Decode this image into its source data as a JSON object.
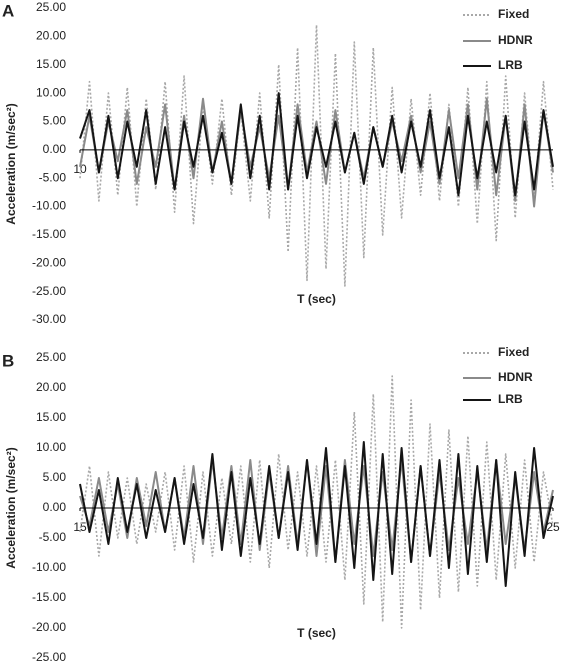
{
  "chart_data": [
    {
      "type": "line",
      "label": "A",
      "xlabel": "T (sec)",
      "ylabel": "Acceleration (m/sec²)",
      "legend": "upper right",
      "xlim": [
        10,
        20
      ],
      "xticks": [
        10
      ],
      "ylim": [
        -30,
        25
      ],
      "yticks": [
        {
          "value": 25,
          "label": "25.00"
        },
        {
          "value": 20,
          "label": "20.00"
        },
        {
          "value": 15,
          "label": "15.00"
        },
        {
          "value": 10,
          "label": "10.00"
        },
        {
          "value": 5,
          "label": "5.00"
        },
        {
          "value": 0,
          "label": "0.00"
        },
        {
          "value": -5,
          "label": "-5.00"
        },
        {
          "value": -10,
          "label": "-10.00"
        },
        {
          "value": -15,
          "label": "-15.00"
        },
        {
          "value": -20,
          "label": "-20.00"
        },
        {
          "value": -25,
          "label": "-25.00"
        },
        {
          "value": -30,
          "label": "-30.00"
        }
      ],
      "x": [
        10,
        10.2,
        10.4,
        10.6,
        10.8,
        11,
        11.2,
        11.4,
        11.6,
        11.8,
        12,
        12.2,
        12.4,
        12.6,
        12.8,
        13,
        13.2,
        13.4,
        13.6,
        13.8,
        14,
        14.2,
        14.4,
        14.6,
        14.8,
        15,
        15.2,
        15.4,
        15.6,
        15.8,
        16,
        16.2,
        16.4,
        16.6,
        16.8,
        17,
        17.2,
        17.4,
        17.6,
        17.8,
        18,
        18.2,
        18.4,
        18.6,
        18.8,
        19,
        19.2,
        19.4,
        19.6,
        19.8,
        20
      ],
      "series": [
        {
          "name": "Fixed",
          "color": "#a8a8a8",
          "style": "dotted",
          "values": [
            -5,
            12,
            -9,
            10,
            -8,
            11,
            -10,
            9,
            -7,
            12,
            -11,
            13,
            -13,
            8,
            -6,
            9,
            -8,
            7,
            -9,
            10,
            -12,
            15,
            -18,
            18,
            -23,
            22,
            -21,
            17,
            -24,
            19,
            -19,
            18,
            -15,
            11,
            -12,
            9,
            -8,
            10,
            -9,
            8,
            -10,
            11,
            -13,
            12,
            -16,
            13,
            -12,
            10,
            -9,
            12,
            -7
          ]
        },
        {
          "name": "HDNR",
          "color": "#8a8a8a",
          "style": "solid",
          "values": [
            -3,
            6,
            -4,
            5,
            -2,
            7,
            -6,
            4,
            -3,
            8,
            -7,
            6,
            -5,
            9,
            -4,
            5,
            -6,
            7,
            -3,
            4,
            -5,
            6,
            -7,
            8,
            -4,
            5,
            -6,
            7,
            -4,
            3,
            -5,
            4,
            -3,
            5,
            -2,
            6,
            -4,
            5,
            -6,
            7,
            -5,
            8,
            -7,
            9,
            -8,
            6,
            -9,
            8,
            -10,
            7,
            -4
          ]
        },
        {
          "name": "LRB",
          "color": "#151515",
          "style": "solid",
          "values": [
            2,
            7,
            -4,
            6,
            -5,
            5,
            -3,
            7,
            -6,
            4,
            -7,
            5,
            -3,
            6,
            -4,
            3,
            -6,
            8,
            -5,
            6,
            -7,
            10,
            -7,
            6,
            -5,
            4,
            -3,
            5,
            -4,
            3,
            -6,
            4,
            -3,
            6,
            -4,
            5,
            -3,
            7,
            -5,
            4,
            -8,
            6,
            -5,
            5,
            -4,
            6,
            -8,
            5,
            -7,
            7,
            -3
          ]
        }
      ]
    },
    {
      "type": "line",
      "label": "B",
      "xlabel": "T (sec)",
      "ylabel": "Acceleration (m/sec²)",
      "legend": "upper right",
      "xlim": [
        15,
        25
      ],
      "xticks": [
        15,
        25
      ],
      "ylim": [
        -25,
        25
      ],
      "yticks": [
        {
          "value": 25,
          "label": "25.00"
        },
        {
          "value": 20,
          "label": "20.00"
        },
        {
          "value": 15,
          "label": "15.00"
        },
        {
          "value": 10,
          "label": "10.00"
        },
        {
          "value": 5,
          "label": "5.00"
        },
        {
          "value": 0,
          "label": "0.00"
        },
        {
          "value": -5,
          "label": "-5.00"
        },
        {
          "value": -10,
          "label": "-10.00"
        },
        {
          "value": -15,
          "label": "-15.00"
        },
        {
          "value": -20,
          "label": "-20.00"
        },
        {
          "value": -25,
          "label": "-25.00"
        }
      ],
      "x": [
        15,
        15.2,
        15.4,
        15.6,
        15.8,
        16,
        16.2,
        16.4,
        16.6,
        16.8,
        17,
        17.2,
        17.4,
        17.6,
        17.8,
        18,
        18.2,
        18.4,
        18.6,
        18.8,
        19,
        19.2,
        19.4,
        19.6,
        19.8,
        20,
        20.2,
        20.4,
        20.6,
        20.8,
        21,
        21.2,
        21.4,
        21.6,
        21.8,
        22,
        22.2,
        22.4,
        22.6,
        22.8,
        23,
        23.2,
        23.4,
        23.6,
        23.8,
        24,
        24.2,
        24.4,
        24.6,
        24.8,
        25
      ],
      "series": [
        {
          "name": "Fixed",
          "color": "#a8a8a8",
          "style": "dotted",
          "values": [
            -4,
            7,
            -8,
            6,
            -5,
            5,
            -6,
            4,
            -4,
            6,
            -7,
            7,
            -9,
            6,
            -8,
            5,
            -6,
            7,
            -9,
            8,
            -10,
            9,
            -7,
            6,
            -8,
            7,
            -9,
            8,
            -12,
            16,
            -16,
            19,
            -19,
            22,
            -20,
            18,
            -17,
            14,
            -15,
            13,
            -14,
            12,
            -13,
            11,
            -12,
            9,
            -10,
            8,
            -9,
            6,
            -3
          ]
        },
        {
          "name": "HDNR",
          "color": "#8a8a8a",
          "style": "solid",
          "values": [
            2,
            -3,
            5,
            -4,
            4,
            -5,
            5,
            -3,
            6,
            -4,
            5,
            -5,
            7,
            -6,
            8,
            -5,
            7,
            -6,
            8,
            -7,
            6,
            -5,
            7,
            -6,
            8,
            -8,
            7,
            -9,
            8,
            -6,
            7,
            -8,
            6,
            -7,
            8,
            -9,
            7,
            -8,
            6,
            -7,
            5,
            -6,
            6,
            -7,
            8,
            -6,
            5,
            -7,
            6,
            -4,
            3
          ]
        },
        {
          "name": "LRB",
          "color": "#151515",
          "style": "solid",
          "values": [
            4,
            -4,
            3,
            -6,
            5,
            -4,
            4,
            -5,
            3,
            -4,
            5,
            -6,
            4,
            -5,
            9,
            -7,
            6,
            -8,
            5,
            -6,
            7,
            -5,
            6,
            -7,
            8,
            -6,
            10,
            -9,
            7,
            -10,
            11,
            -12,
            9,
            -11,
            10,
            -9,
            7,
            -8,
            8,
            -10,
            9,
            -11,
            7,
            -9,
            8,
            -13,
            6,
            -8,
            10,
            -5,
            2
          ]
        }
      ]
    }
  ]
}
